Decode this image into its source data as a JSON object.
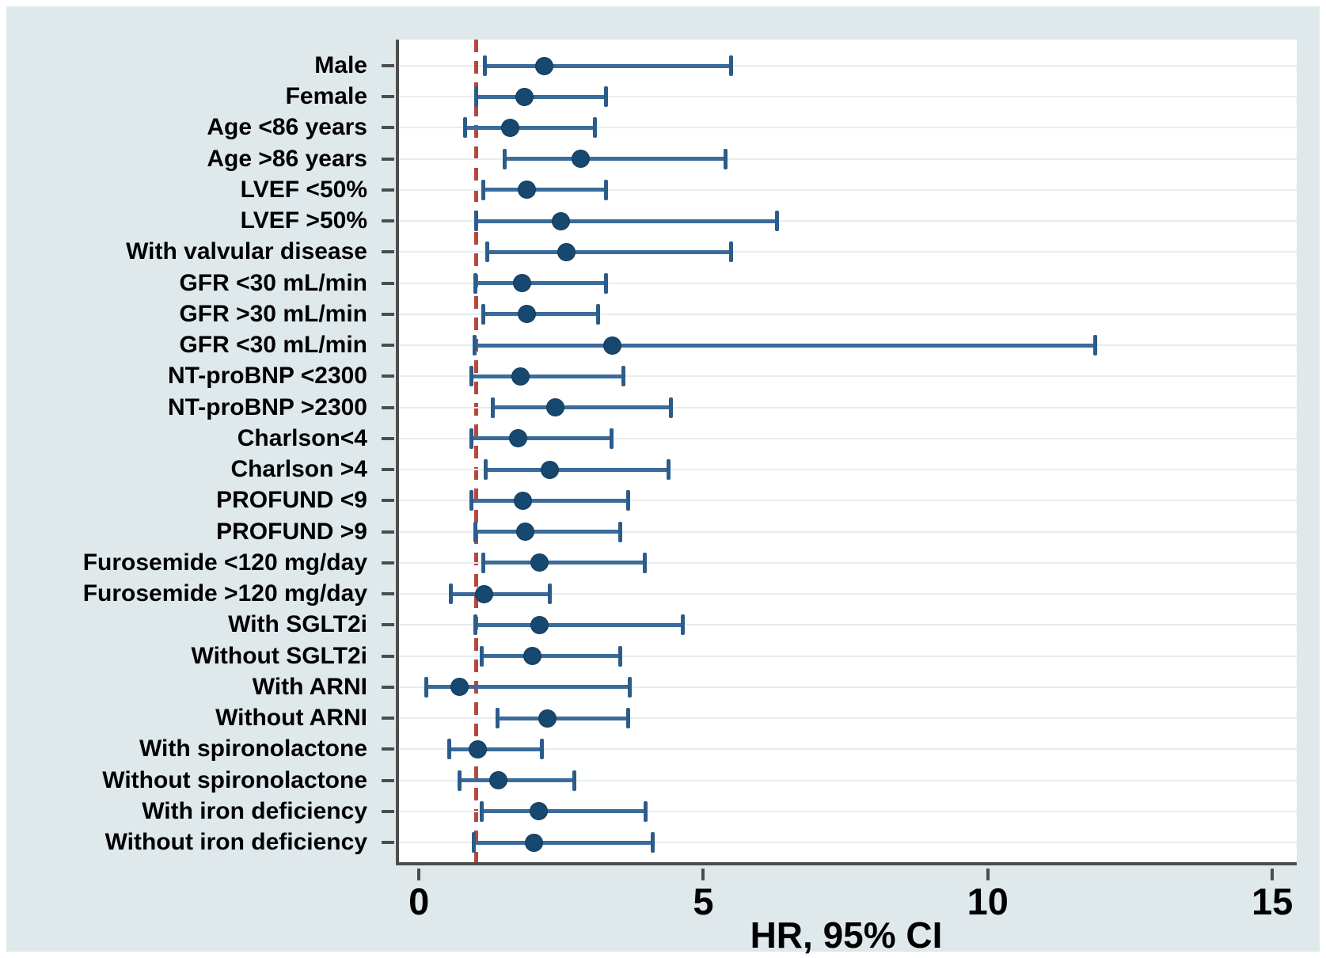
{
  "chart_data": {
    "type": "forest",
    "xlabel": "HR, 95% CI",
    "x_ticks": [
      "0",
      "5",
      "10",
      "15"
    ],
    "x_tick_values": [
      0,
      5,
      10,
      15
    ],
    "xlim": [
      -0.35,
      15.43
    ],
    "reference_line": 1.0,
    "legend": "none",
    "grid": "horizontal",
    "rows": [
      {
        "label": "Male",
        "hr": 2.2,
        "lo": 1.15,
        "hi": 5.5
      },
      {
        "label": "Female",
        "hr": 1.85,
        "lo": 1.0,
        "hi": 3.3
      },
      {
        "label": "Age <86 years",
        "hr": 1.6,
        "lo": 0.8,
        "hi": 3.1
      },
      {
        "label": "Age >86 years",
        "hr": 2.85,
        "lo": 1.5,
        "hi": 5.4
      },
      {
        "label": "LVEF <50%",
        "hr": 1.9,
        "lo": 1.13,
        "hi": 3.3
      },
      {
        "label": "LVEF >50%",
        "hr": 2.5,
        "lo": 1.0,
        "hi": 6.3
      },
      {
        "label": "With valvular disease",
        "hr": 2.6,
        "lo": 1.2,
        "hi": 5.5
      },
      {
        "label": "GFR <30 mL/min",
        "hr": 1.82,
        "lo": 0.98,
        "hi": 3.3
      },
      {
        "label": "GFR >30 mL/min",
        "hr": 1.9,
        "lo": 1.13,
        "hi": 3.15
      },
      {
        "label": "GFR <30 mL/min",
        "hr": 3.4,
        "lo": 0.97,
        "hi": 11.9
      },
      {
        "label": "NT-proBNP <2300",
        "hr": 1.78,
        "lo": 0.92,
        "hi": 3.6
      },
      {
        "label": "NT-proBNP >2300",
        "hr": 2.4,
        "lo": 1.29,
        "hi": 4.43
      },
      {
        "label": "Charlson<4",
        "hr": 1.75,
        "lo": 0.91,
        "hi": 3.4
      },
      {
        "label": "Charlson >4",
        "hr": 2.3,
        "lo": 1.17,
        "hi": 4.4
      },
      {
        "label": "PROFUND <9",
        "hr": 1.83,
        "lo": 0.91,
        "hi": 3.68
      },
      {
        "label": "PROFUND >9",
        "hr": 1.87,
        "lo": 0.98,
        "hi": 3.54
      },
      {
        "label": "Furosemide <120 mg/day",
        "hr": 2.12,
        "lo": 1.13,
        "hi": 3.98
      },
      {
        "label": "Furosemide >120 mg/day",
        "hr": 1.14,
        "lo": 0.55,
        "hi": 2.31
      },
      {
        "label": "With SGLT2i",
        "hr": 2.12,
        "lo": 0.99,
        "hi": 4.65
      },
      {
        "label": "Without SGLT2i",
        "hr": 2.0,
        "lo": 1.1,
        "hi": 3.55
      },
      {
        "label": "With ARNI",
        "hr": 0.71,
        "lo": 0.12,
        "hi": 3.72
      },
      {
        "label": "Without ARNI",
        "hr": 2.26,
        "lo": 1.38,
        "hi": 3.68
      },
      {
        "label": "With spironolactone",
        "hr": 1.03,
        "lo": 0.52,
        "hi": 2.17
      },
      {
        "label": "Without spironolactone",
        "hr": 1.39,
        "lo": 0.71,
        "hi": 2.74
      },
      {
        "label": "With iron deficiency",
        "hr": 2.1,
        "lo": 1.1,
        "hi": 3.99
      },
      {
        "label": "Without iron deficiency",
        "hr": 2.02,
        "lo": 0.96,
        "hi": 4.12
      }
    ],
    "colors": {
      "panel_background": "#dfe8eb",
      "plot_background": "#ffffff",
      "axis": "#4d4d4d",
      "gridline": "#e7edef",
      "ci_line": "#3a6b9b",
      "ci_cap": "#2b5c8a",
      "marker": "#17486f",
      "reference_line": "#b6473d",
      "text": "#000000"
    }
  }
}
